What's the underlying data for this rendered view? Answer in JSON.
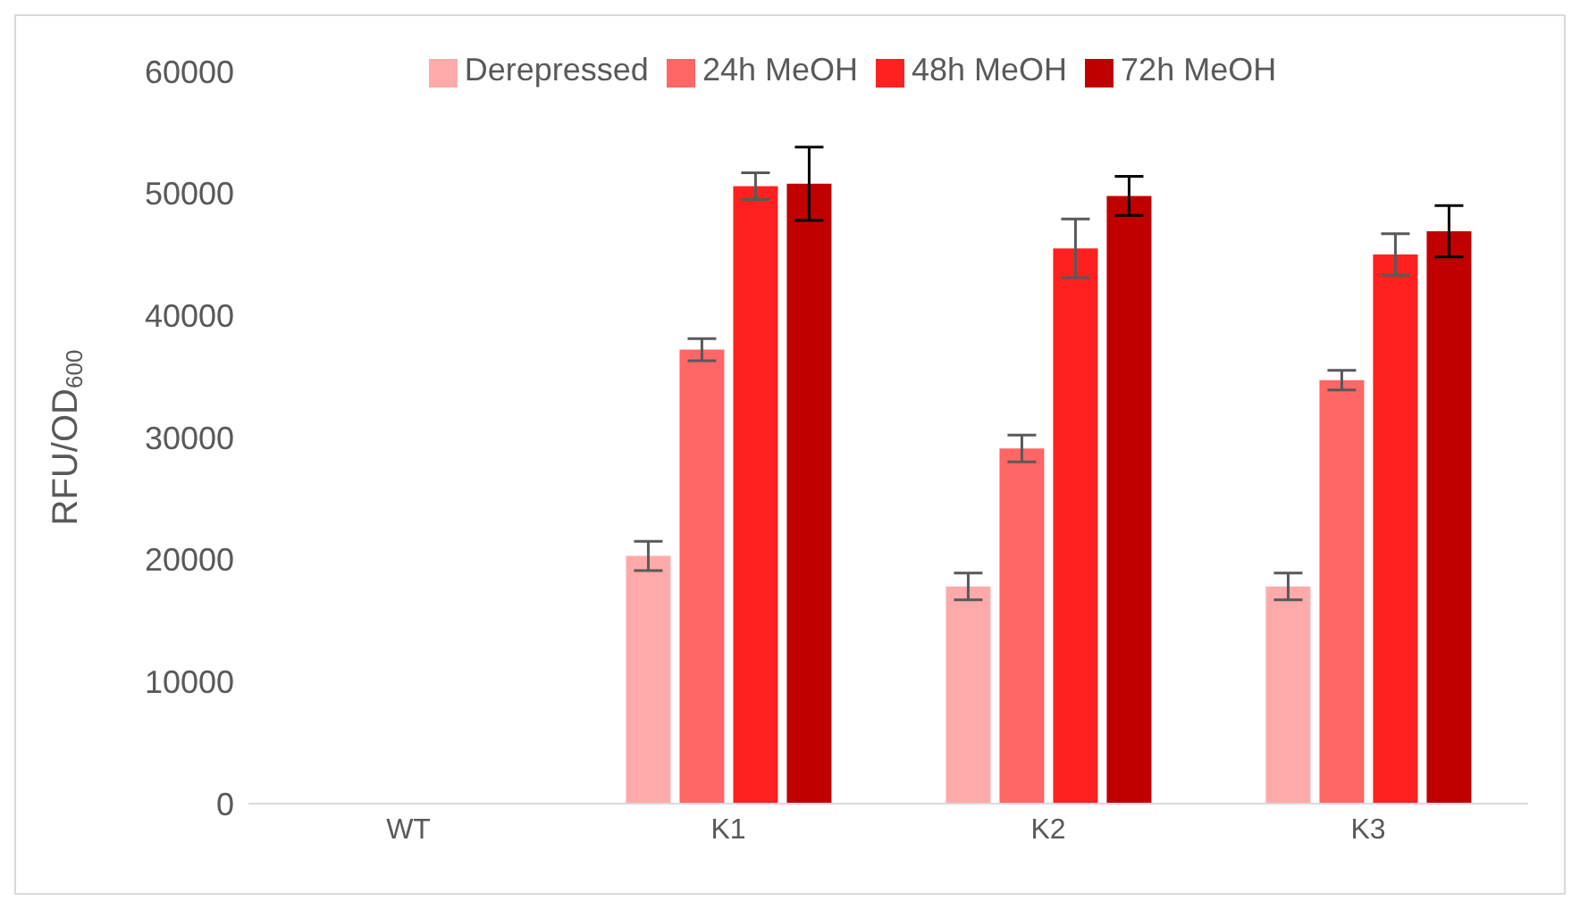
{
  "chart_data": {
    "type": "bar",
    "ylabel": "RFU/OD$_{600}$",
    "categories": [
      "WT",
      "K1",
      "K2",
      "K3"
    ],
    "series": [
      {
        "name": "Derepressed",
        "color": "#ffaaaa",
        "values": [
          0,
          20300,
          17800,
          17800
        ],
        "errors": [
          0,
          1200,
          1100,
          1100
        ]
      },
      {
        "name": "24h MeOH",
        "color": "#ff6666",
        "values": [
          0,
          37200,
          29100,
          34700
        ],
        "errors": [
          0,
          900,
          1100,
          800
        ]
      },
      {
        "name": "48h MeOH",
        "color": "#ff2020",
        "values": [
          0,
          50600,
          45500,
          45000
        ],
        "errors": [
          0,
          1100,
          2400,
          1700
        ]
      },
      {
        "name": "72h MeOH",
        "color": "#c00000",
        "values": [
          null,
          50800,
          49800,
          46900
        ],
        "errors": [
          null,
          3000,
          1600,
          2100
        ]
      }
    ],
    "ylim": [
      0,
      60000
    ],
    "yticks": [
      0,
      10000,
      20000,
      30000,
      40000,
      50000,
      60000
    ],
    "grid": false,
    "legend": "top"
  }
}
